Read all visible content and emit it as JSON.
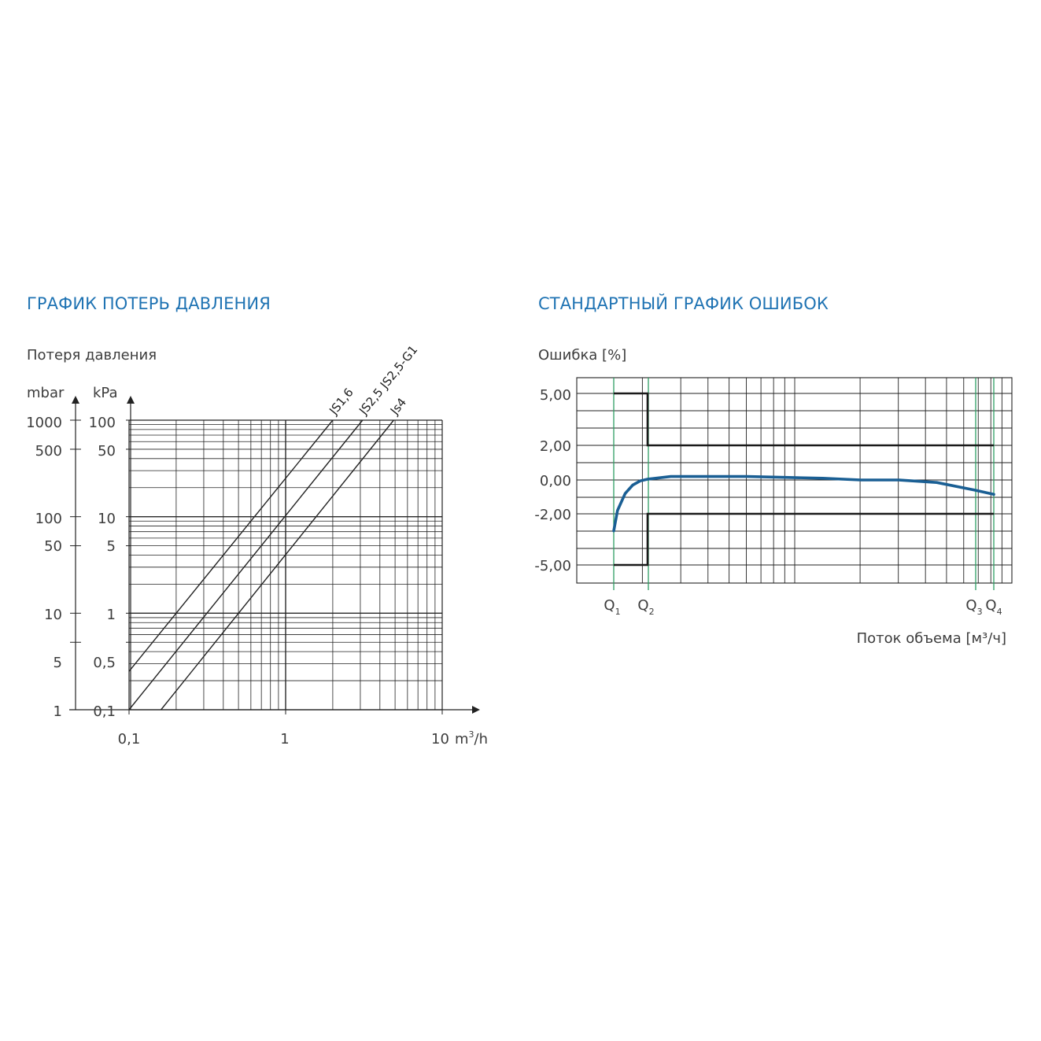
{
  "left_chart": {
    "title": "ГРАФИК ПОТЕРЬ ДАВЛЕНИЯ",
    "ylabel": "Потеря давления",
    "unit_mbar": "mbar",
    "unit_kpa": "kPa",
    "mbar_ticks": [
      "1000",
      "500",
      "100",
      "50",
      "10",
      "5",
      "1"
    ],
    "kpa_ticks": [
      "100",
      "50",
      "10",
      "5",
      "1",
      "0,5",
      "0,1"
    ],
    "x_ticks": [
      "0,1",
      "1",
      "10"
    ],
    "x_unit_base": "m",
    "x_unit_sup": "3",
    "x_unit_tail": "/h"
  },
  "right_chart": {
    "title": "СТАНДАРТНЫЙ ГРАФИК ОШИБОК",
    "ylabel": "Ошибка [%]",
    "xlabel": "Поток объема [м³/ч]",
    "y_ticks": [
      "5,00",
      "2,00",
      "0,00",
      "-2,00",
      "-5,00"
    ],
    "q_labels": [
      {
        "letter": "Q",
        "sub": "1"
      },
      {
        "letter": "Q",
        "sub": "2"
      },
      {
        "letter": "Q",
        "sub": "3"
      },
      {
        "letter": "Q",
        "sub": "4"
      }
    ]
  },
  "chart_data": [
    {
      "type": "line",
      "title": "ГРАФИК ПОТЕРЬ ДАВЛЕНИЯ",
      "ylabel": "Потеря давления",
      "x_scale": "log",
      "y_scale": "log",
      "xlim": [
        0.1,
        10
      ],
      "ylim_kpa": [
        0.1,
        100
      ],
      "ylim_mbar": [
        1,
        1000
      ],
      "grid": true,
      "line_color": "#222222",
      "series": [
        {
          "name": "JS1,6",
          "x": [
            0.1,
            2.0
          ],
          "y": [
            0.25,
            100
          ]
        },
        {
          "name": "JS2,5 JS2,5-G1",
          "x": [
            0.1,
            3.1
          ],
          "y": [
            0.1,
            100
          ]
        },
        {
          "name": "Js4",
          "x": [
            0.16,
            4.9
          ],
          "y": [
            0.1,
            100
          ]
        }
      ]
    },
    {
      "type": "line",
      "title": "СТАНДАРТНЫЙ ГРАФИК ОШИБОК",
      "ylabel": "Ошибка [%]",
      "xlabel": "Поток объема [м³/ч]",
      "x_scale": "log",
      "grid": true,
      "y_tick_values": [
        5,
        2,
        0,
        -2,
        -5
      ],
      "q_marks": [
        "Q1",
        "Q2",
        "Q3",
        "Q4"
      ],
      "q_line_color": "#2e9e63",
      "limit_color": "#1a1a1a",
      "curve_color": "#1a5f94",
      "error_limits": {
        "Q1_to_Q2": [
          -5,
          5
        ],
        "Q2_to_Q4": [
          -2,
          2
        ]
      },
      "series": [
        {
          "x_fraction_Q1_to_Q4": [
            0,
            0.01,
            0.03,
            0.05,
            0.07,
            0.09,
            0.15,
            0.25,
            0.35,
            0.45,
            0.55,
            0.65,
            0.75,
            0.85,
            0.95,
            1.0
          ],
          "y": [
            -3.0,
            -1.8,
            -0.8,
            -0.3,
            -0.05,
            0.05,
            0.2,
            0.2,
            0.2,
            0.15,
            0.1,
            0.0,
            0.0,
            -0.15,
            -0.6,
            -0.85
          ]
        }
      ]
    }
  ]
}
